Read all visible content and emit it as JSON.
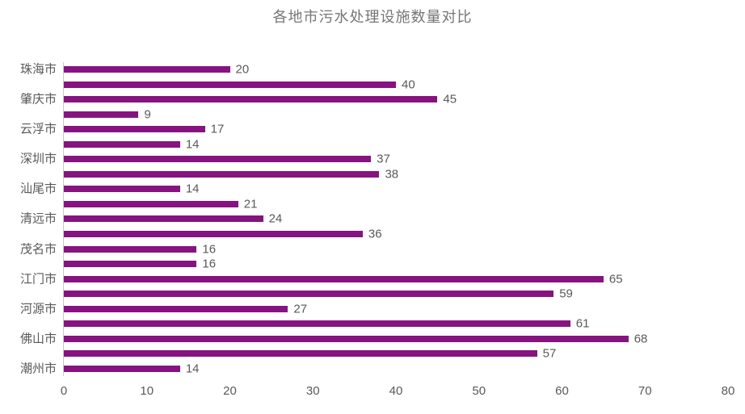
{
  "title": "各地市污水处理设施数量对比",
  "colors": {
    "bar": "#861380",
    "title_text": "#757575",
    "axis_text": "#595959",
    "data_label_text": "#595959",
    "axis_line": "#c9c9c9",
    "background": "#ffffff"
  },
  "chart_data": {
    "type": "bar",
    "orientation": "horizontal",
    "order": "top-to-bottom",
    "title": "各地市污水处理设施数量对比",
    "categories": [
      "珠海市",
      "",
      "肇庆市",
      "",
      "云浮市",
      "",
      "深圳市",
      "",
      "汕尾市",
      "",
      "清远市",
      "",
      "茂名市",
      "",
      "江门市",
      "",
      "河源市",
      "",
      "佛山市",
      "",
      "潮州市"
    ],
    "values": [
      20,
      40,
      45,
      9,
      17,
      14,
      37,
      38,
      14,
      21,
      24,
      36,
      16,
      16,
      65,
      59,
      27,
      61,
      68,
      57,
      14
    ],
    "xlabel": "",
    "ylabel": "",
    "xlim": [
      0,
      80
    ],
    "x_ticks": [
      0,
      10,
      20,
      30,
      40,
      50,
      60,
      70,
      80
    ],
    "data_labels": true,
    "grid": false,
    "legend_position": "none"
  }
}
